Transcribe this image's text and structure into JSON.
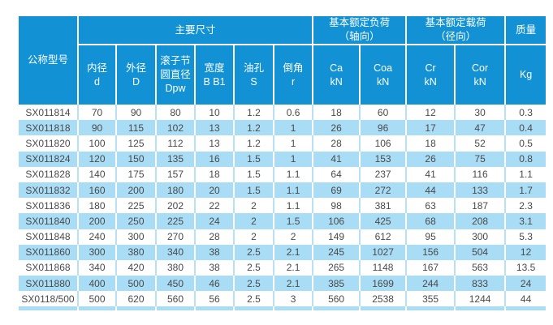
{
  "colors": {
    "header_bg": "#1292d5",
    "header_text": "#ffffff",
    "row_alt_bg": "#a9dcf5",
    "row_bg": "#ffffff",
    "divider_on_white": "#b7e1f6",
    "cell_text": "#4a4a4a"
  },
  "table": {
    "header": {
      "model": "公称型号",
      "groups": [
        {
          "label": "主要尺寸"
        },
        {
          "label": "基本额定负荷\n（轴向）"
        },
        {
          "label": "基本额定载荷\n（径向）"
        },
        {
          "label": "质量"
        }
      ],
      "subheaders": [
        "内径\nd",
        "外径\nD",
        "滚子节\n圆直径\nDpw",
        "宽度\nB B1",
        "油孔\nS",
        "倒角\nr",
        "Ca\nkN",
        "Coa\nkN",
        "Cr\nkN",
        "Cor\nkN",
        "Kg"
      ]
    },
    "rows": [
      [
        "SX011814",
        "70",
        "90",
        "80",
        "10",
        "1.2",
        "0.6",
        "18",
        "60",
        "12",
        "30",
        "0.3"
      ],
      [
        "SX011818",
        "90",
        "115",
        "102",
        "13",
        "1.2",
        "1",
        "26",
        "96",
        "17",
        "47",
        "0.4"
      ],
      [
        "SX011820",
        "100",
        "125",
        "112",
        "13",
        "1.2",
        "1",
        "28",
        "106",
        "18",
        "52",
        "0.5"
      ],
      [
        "SX011824",
        "120",
        "150",
        "135",
        "16",
        "1.5",
        "1",
        "41",
        "153",
        "26",
        "75",
        "0.8"
      ],
      [
        "SX011828",
        "140",
        "175",
        "157",
        "18",
        "1.5",
        "1.1",
        "64",
        "237",
        "41",
        "116",
        "1.1"
      ],
      [
        "SX011832",
        "160",
        "200",
        "180",
        "20",
        "1.5",
        "1.1",
        "69",
        "272",
        "44",
        "133",
        "1.7"
      ],
      [
        "SX011836",
        "180",
        "225",
        "202",
        "22",
        "2",
        "1.1",
        "98",
        "381",
        "63",
        "187",
        "2.3"
      ],
      [
        "SX011840",
        "200",
        "250",
        "225",
        "24",
        "2",
        "1.5",
        "106",
        "425",
        "68",
        "208",
        "3.1"
      ],
      [
        "SX011848",
        "240",
        "300",
        "270",
        "28",
        "2",
        "2",
        "149",
        "612",
        "95",
        "300",
        "5.3"
      ],
      [
        "SX011860",
        "300",
        "380",
        "340",
        "38",
        "2.5",
        "2.1",
        "245",
        "1027",
        "156",
        "504",
        "12"
      ],
      [
        "SX011868",
        "340",
        "420",
        "380",
        "38",
        "2.5",
        "2.1",
        "265",
        "1148",
        "167",
        "563",
        "13.5"
      ],
      [
        "SX011880",
        "400",
        "500",
        "450",
        "46",
        "2.5",
        "2.1",
        "385",
        "1699",
        "244",
        "833",
        "24"
      ],
      [
        "SX0118/500",
        "500",
        "620",
        "560",
        "56",
        "2.5",
        "3",
        "560",
        "2538",
        "355",
        "1244",
        "44"
      ]
    ]
  }
}
